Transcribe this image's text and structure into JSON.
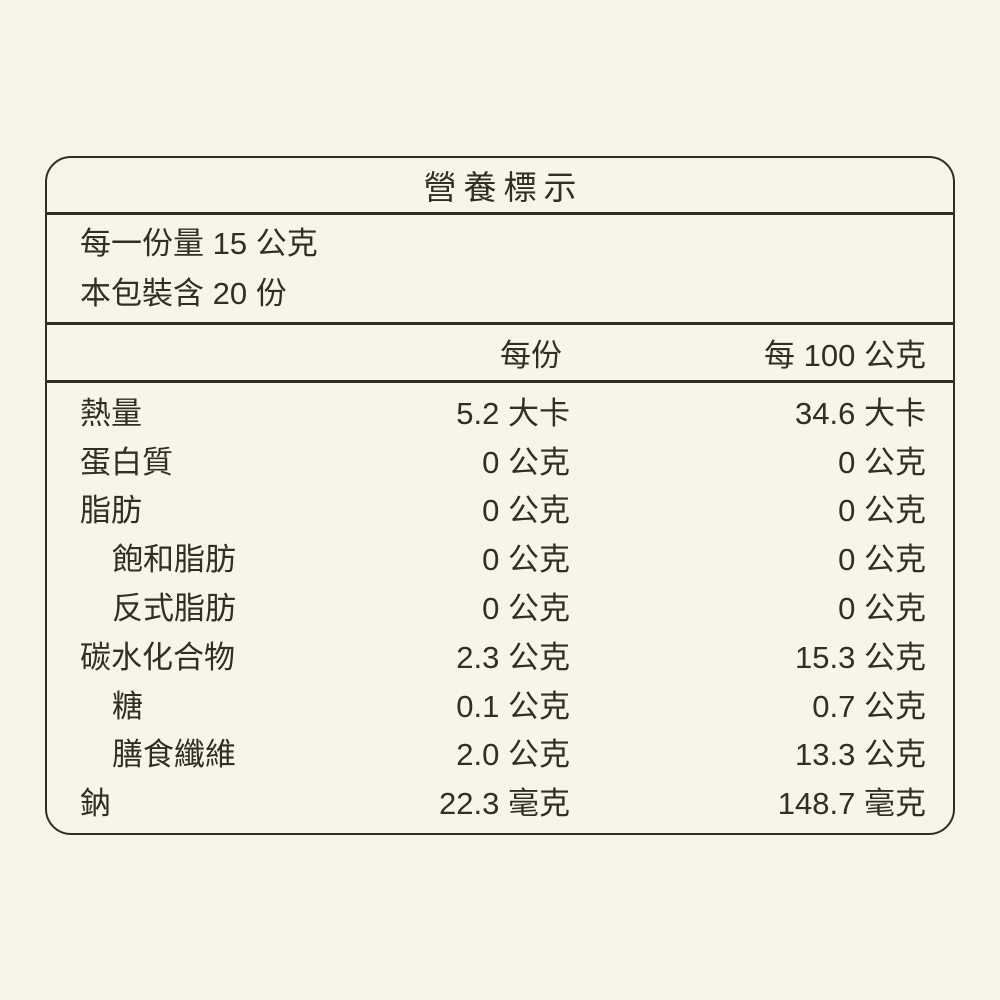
{
  "colors": {
    "background": "#f7f4e8",
    "ink": "#332d26"
  },
  "label": {
    "title": "營養標示",
    "serving_size": "每一份量 15 公克",
    "servings_per_package": "本包裝含 20 份",
    "columns": {
      "per_serving": "每份",
      "per_100g": "每 100 公克"
    },
    "rows": [
      {
        "name": "熱量",
        "indent": false,
        "per_serving": "5.2 大卡",
        "per_100g": "34.6 大卡"
      },
      {
        "name": "蛋白質",
        "indent": false,
        "per_serving": "0 公克",
        "per_100g": "0 公克"
      },
      {
        "name": "脂肪",
        "indent": false,
        "per_serving": "0 公克",
        "per_100g": "0 公克"
      },
      {
        "name": "飽和脂肪",
        "indent": true,
        "per_serving": "0 公克",
        "per_100g": "0 公克"
      },
      {
        "name": "反式脂肪",
        "indent": true,
        "per_serving": "0 公克",
        "per_100g": "0 公克"
      },
      {
        "name": "碳水化合物",
        "indent": false,
        "per_serving": "2.3 公克",
        "per_100g": "15.3 公克"
      },
      {
        "name": "糖",
        "indent": true,
        "per_serving": "0.1 公克",
        "per_100g": "0.7 公克"
      },
      {
        "name": "膳食纖維",
        "indent": true,
        "per_serving": "2.0 公克",
        "per_100g": "13.3 公克"
      },
      {
        "name": "鈉",
        "indent": false,
        "per_serving": "22.3 毫克",
        "per_100g": "148.7 毫克"
      }
    ]
  }
}
